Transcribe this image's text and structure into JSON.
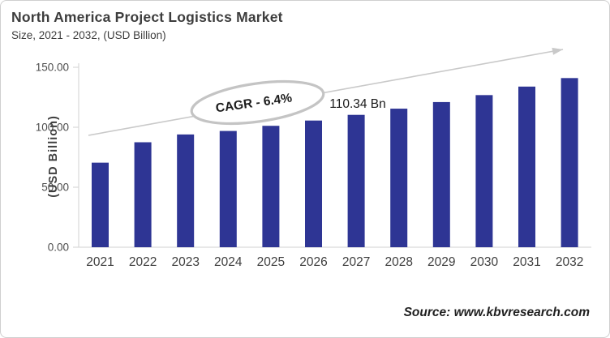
{
  "header": {
    "title": "North America Project Logistics Market",
    "subtitle": "Size, 2021 - 2032, (USD Billion)"
  },
  "chart_data": {
    "type": "bar",
    "title": "North America Project Logistics Market Size, 2021 - 2032, (USD Billion)",
    "categories": [
      "2021",
      "2022",
      "2023",
      "2024",
      "2025",
      "2026",
      "2027",
      "2028",
      "2029",
      "2030",
      "2031",
      "2032"
    ],
    "values": [
      70.5,
      87.5,
      94.0,
      96.9,
      101.2,
      105.6,
      110.34,
      115.5,
      121.0,
      126.8,
      133.9,
      141.0
    ],
    "xlabel": "",
    "ylabel": "(USD Billion)",
    "ylim": [
      0,
      150
    ],
    "yticks": [
      0,
      50,
      100,
      150
    ],
    "ytick_labels": [
      "0.00",
      "50.00",
      "100.00",
      "150.00"
    ],
    "grid": false,
    "legend_position": "none",
    "annotations": {
      "cagr": {
        "text": "CAGR - 6.4%"
      },
      "value_label": {
        "text": "110.34 Bn",
        "category": "2027",
        "value": 110.34
      }
    },
    "trend_arrow": {
      "present": true,
      "direction": "up-right"
    }
  },
  "source": {
    "text": "Source: www.kbvresearch.com"
  },
  "colors": {
    "bar": "#2E3594",
    "arrow": "#C9C9C9",
    "ellipse_stroke": "#C4C4C4",
    "axis_line": "#D9D9D9",
    "ytick_label": "#4D4D4D",
    "xtick_label": "#3F3F3F",
    "title_text": "#3D3D3D"
  }
}
